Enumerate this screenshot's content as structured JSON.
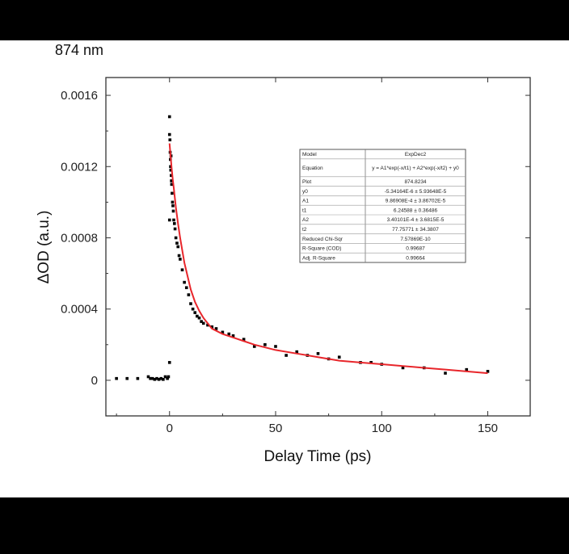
{
  "chart_data": {
    "type": "scatter",
    "title": "874 nm",
    "xlabel": "Delay Time (ps)",
    "ylabel": "ΔOD (a.u.)",
    "xlim": [
      -30,
      170
    ],
    "ylim": [
      -0.0002,
      0.0017
    ],
    "xticks": [
      0,
      50,
      100,
      150
    ],
    "xtick_labels": [
      "0",
      "50",
      "100",
      "150"
    ],
    "yticks": [
      0,
      0.0004,
      0.0008,
      0.0012,
      0.0016
    ],
    "ytick_labels": [
      "0",
      "0.0004",
      "0.0008",
      "0.0012",
      "0.0016"
    ],
    "grid": false,
    "series": [
      {
        "kind": "points",
        "color": "#000000",
        "x": [
          -25,
          -20,
          -15,
          -10,
          -9,
          -8,
          -7,
          -6,
          -5,
          -4,
          -3,
          -2,
          -1,
          -0.5,
          0,
          0,
          0,
          0,
          0.2,
          0.3,
          0.4,
          0.5,
          0.6,
          0.7,
          0.8,
          0.9,
          1.0,
          1.2,
          1.4,
          1.6,
          1.8,
          2.0,
          2.3,
          2.6,
          3,
          3.5,
          4,
          4.5,
          5,
          6,
          7,
          8,
          9,
          10,
          11,
          12,
          13,
          14,
          15,
          16,
          18,
          20,
          22,
          25,
          28,
          30,
          35,
          40,
          45,
          50,
          55,
          60,
          65,
          70,
          75,
          80,
          90,
          95,
          100,
          110,
          120,
          130,
          140,
          150
        ],
        "y": [
          1e-05,
          1e-05,
          1e-05,
          2e-05,
          1e-05,
          1e-05,
          5e-06,
          1e-05,
          5e-06,
          1e-05,
          5e-06,
          2e-05,
          1e-05,
          2e-05,
          0.0001,
          0.0009,
          0.00148,
          0.00138,
          0.00135,
          0.00128,
          0.00124,
          0.0012,
          0.00118,
          0.00126,
          0.00115,
          0.00112,
          0.0011,
          0.00105,
          0.001,
          0.00098,
          0.00095,
          0.0009,
          0.00088,
          0.00085,
          0.0008,
          0.00077,
          0.00075,
          0.0007,
          0.00068,
          0.00062,
          0.00055,
          0.00052,
          0.00048,
          0.00043,
          0.0004,
          0.00038,
          0.00036,
          0.00035,
          0.00033,
          0.00032,
          0.00031,
          0.0003,
          0.00029,
          0.00027,
          0.00026,
          0.00025,
          0.00023,
          0.00019,
          0.0002,
          0.00019,
          0.00014,
          0.00016,
          0.00014,
          0.00015,
          0.00012,
          0.00013,
          0.0001,
          0.0001,
          9e-05,
          7e-05,
          7e-05,
          4e-05,
          6e-05,
          5e-05
        ]
      },
      {
        "kind": "fit-line",
        "color": "#e8262b",
        "x": [
          0,
          0.5,
          1,
          1.5,
          2,
          3,
          4,
          5,
          6,
          7,
          8,
          10,
          12,
          14,
          16,
          18,
          20,
          25,
          30,
          35,
          40,
          50,
          60,
          70,
          80,
          90,
          100,
          110,
          120,
          130,
          140,
          150
        ],
        "y": [
          0.00133,
          0.00126,
          0.00119,
          0.00113,
          0.00108,
          0.00097,
          0.00088,
          0.0008,
          0.00073,
          0.00066,
          0.00061,
          0.00051,
          0.00044,
          0.00039,
          0.00035,
          0.00032,
          0.00029,
          0.00026,
          0.00024,
          0.00022,
          0.0002,
          0.00017,
          0.00015,
          0.00013,
          0.00011,
          0.0001,
          9e-05,
          8e-05,
          7e-05,
          6e-05,
          5e-05,
          4e-05
        ]
      }
    ],
    "fit_table": {
      "rows": [
        [
          "Model",
          "ExpDec2"
        ],
        [
          "Equation",
          "y = A1*exp(-x/t1) + A2*exp(-x/t2) + y0"
        ],
        [
          "Plot",
          "874.8234"
        ],
        [
          "y0",
          "-5.34164E-6 ± 5.93648E-5"
        ],
        [
          "A1",
          "9.86908E-4 ± 3.86702E-5"
        ],
        [
          "t1",
          "6.24588 ± 0.36486"
        ],
        [
          "A2",
          "3.40101E-4 ± 3.6815E-5"
        ],
        [
          "t2",
          "77.75771 ± 34.3807"
        ],
        [
          "Reduced Chi-Sqr",
          "7.57869E-10"
        ],
        [
          "R-Square (COD)",
          "0.99687"
        ],
        [
          "Adj. R-Square",
          "0.99664"
        ]
      ]
    }
  }
}
